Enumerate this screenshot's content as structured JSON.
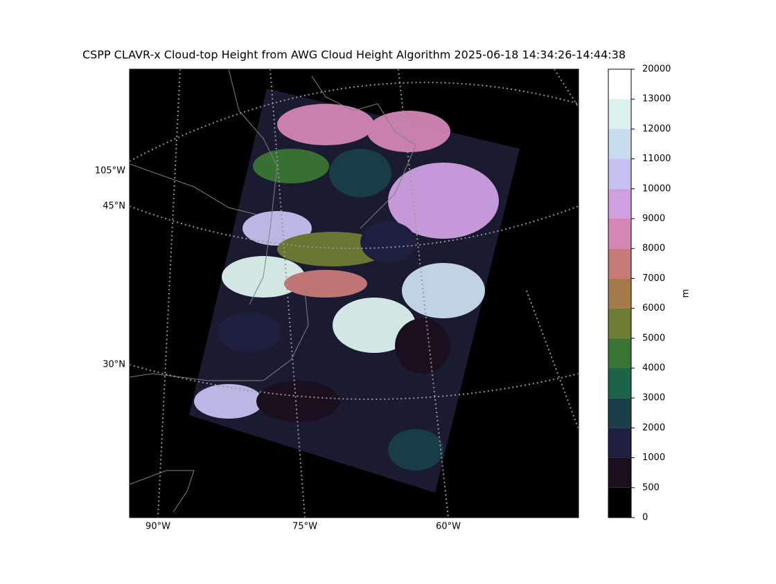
{
  "title": "CSPP CLAVR-x Cloud-top Height from AWG Cloud Height Algorithm 2025-06-18 14:34:26-14:44:38",
  "map": {
    "labels": [
      {
        "text": "105°W"
      },
      {
        "text": "45°N"
      },
      {
        "text": "30°N"
      },
      {
        "text": "90°W"
      },
      {
        "text": "75°W"
      },
      {
        "text": "60°W"
      }
    ]
  },
  "colorbar": {
    "label": "m",
    "boundaries": [
      0,
      500,
      1000,
      2000,
      3000,
      4000,
      5000,
      6000,
      7000,
      8000,
      9000,
      10000,
      11000,
      12000,
      13000,
      20000
    ],
    "colors": [
      "#000000",
      "#1b0f1f",
      "#1e2040",
      "#183f4a",
      "#1d6347",
      "#3a7535",
      "#6e7d33",
      "#a47a4a",
      "#c77a78",
      "#d486b5",
      "#cfa0e0",
      "#c4c0ef",
      "#c8dcf0",
      "#dcf2ee",
      "#ffffff"
    ]
  }
}
